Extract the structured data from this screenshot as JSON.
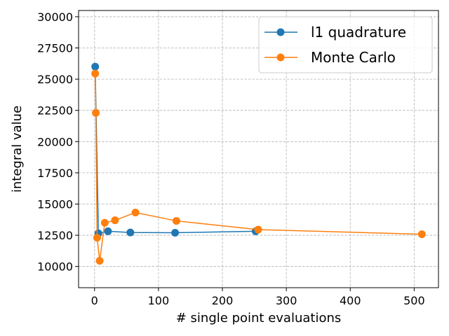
{
  "chart_data": {
    "type": "line",
    "xlabel": "# single point evaluations",
    "ylabel": "integral value",
    "xlim": [
      -25,
      538
    ],
    "ylim": [
      8300,
      30500
    ],
    "xticks": [
      0,
      100,
      200,
      300,
      400,
      500
    ],
    "yticks": [
      10000,
      12500,
      15000,
      17500,
      20000,
      22500,
      25000,
      27500,
      30000
    ],
    "grid": true,
    "legend_position": "top-right",
    "series": [
      {
        "name": "l1 quadrature",
        "color": "#1f77b4",
        "x": [
          1,
          6,
          21,
          56,
          126,
          252
        ],
        "y": [
          26000,
          12650,
          12820,
          12720,
          12700,
          12820
        ]
      },
      {
        "name": "Monte Carlo",
        "color": "#ff7f0e",
        "x": [
          1,
          2,
          4,
          8,
          16,
          32,
          64,
          128,
          256,
          512
        ],
        "y": [
          25450,
          22300,
          12300,
          10450,
          13500,
          13700,
          14320,
          13650,
          12950,
          12580
        ]
      }
    ]
  }
}
